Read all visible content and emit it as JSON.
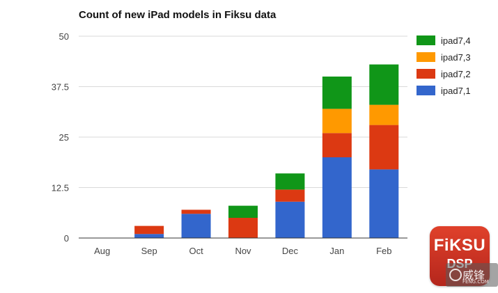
{
  "chart_data": {
    "type": "bar",
    "stacked": true,
    "title": "Count of new iPad models in Fiksu data",
    "categories": [
      "Aug",
      "Sep",
      "Oct",
      "Nov",
      "Dec",
      "Jan",
      "Feb"
    ],
    "series": [
      {
        "name": "ipad7,1",
        "color": "#3366cc",
        "values": [
          0,
          1,
          6,
          0,
          9,
          20,
          17
        ]
      },
      {
        "name": "ipad7,2",
        "color": "#dc3912",
        "values": [
          0,
          2,
          1,
          5,
          3,
          6,
          11
        ]
      },
      {
        "name": "ipad7,3",
        "color": "#ff9900",
        "values": [
          0,
          0,
          0,
          0,
          0,
          6,
          5
        ]
      },
      {
        "name": "ipad7,4",
        "color": "#109618",
        "values": [
          0,
          0,
          0,
          3,
          4,
          8,
          10
        ]
      }
    ],
    "ylim": [
      0,
      50
    ],
    "yticks": [
      "0",
      "12.5",
      "25",
      "37.5",
      "50"
    ],
    "grid": true,
    "legend_position": "right"
  },
  "logo": {
    "main": "FiKSU",
    "sub": "DSP"
  },
  "watermark": {
    "text": "威锋",
    "sub": "FENG.COM"
  }
}
